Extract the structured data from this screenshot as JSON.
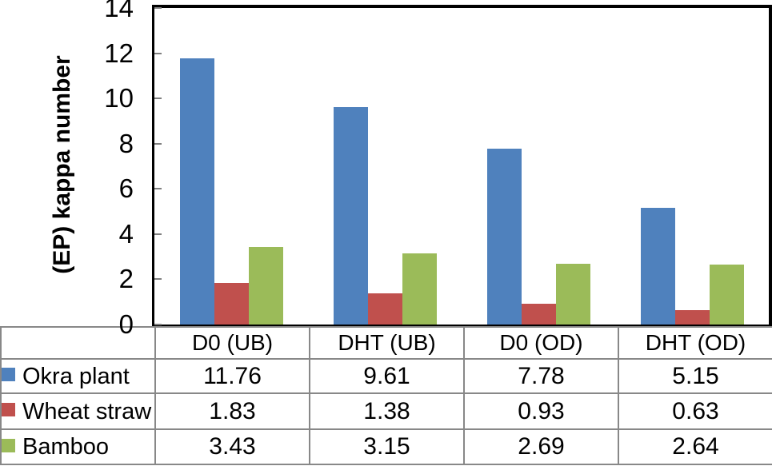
{
  "chart_data": {
    "type": "bar",
    "title": "",
    "ylabel": "(EP) kappa number",
    "xlabel": "",
    "ylim": [
      0,
      14
    ],
    "yticks": [
      0,
      2,
      4,
      6,
      8,
      10,
      12,
      14
    ],
    "grid": false,
    "legend_position": "data-table-left",
    "data_table_shown": true,
    "categories": [
      "D0 (UB)",
      "DHT (UB)",
      "D0 (OD)",
      "DHT (OD)"
    ],
    "series": [
      {
        "name": "Okra plant",
        "color": "#4F81BD",
        "values": [
          11.76,
          9.61,
          7.78,
          5.15
        ]
      },
      {
        "name": "Wheat straw",
        "color": "#C0504D",
        "values": [
          1.83,
          1.38,
          0.93,
          0.63
        ]
      },
      {
        "name": "Bamboo",
        "color": "#9BBB59",
        "values": [
          3.43,
          3.15,
          2.69,
          2.64
        ]
      }
    ],
    "colors": {
      "axis_line": "#000000",
      "tick_mark": "#808080",
      "table_border": "#888888",
      "text": "#000000",
      "background": "#ffffff"
    }
  }
}
